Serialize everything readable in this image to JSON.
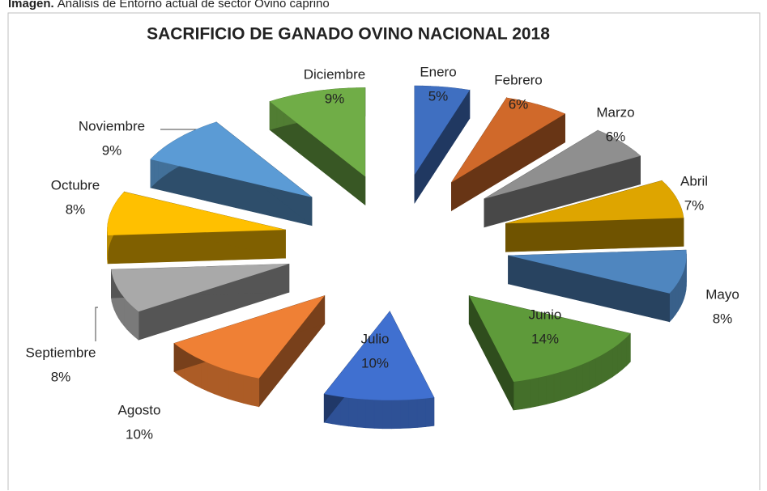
{
  "caption": {
    "label": "Imagen.",
    "text": "Análisis de Entorno actual de sector Ovino caprino"
  },
  "chart_data": {
    "type": "pie3d",
    "title": "SACRIFICIO DE GANADO OVINO NACIONAL 2018",
    "categories": [
      "Enero",
      "Febrero",
      "Marzo",
      "Abril",
      "Mayo",
      "Junio",
      "Julio",
      "Agosto",
      "Septiembre",
      "Octubre",
      "Noviembre",
      "Diciembre"
    ],
    "values": [
      5,
      6,
      6,
      7,
      8,
      14,
      10,
      10,
      8,
      8,
      9,
      9
    ],
    "value_labels": [
      "5%",
      "6%",
      "6%",
      "7%",
      "8%",
      "14%",
      "10%",
      "10%",
      "8%",
      "8%",
      "9%",
      "9%"
    ],
    "colors": [
      "#3f6fc1",
      "#d0692a",
      "#8f8f8f",
      "#dea500",
      "#4f86bf",
      "#5e9a3a",
      "#4070d0",
      "#ef8035",
      "#a9a9a9",
      "#ffc000",
      "#5b9bd5",
      "#70ad47"
    ]
  }
}
